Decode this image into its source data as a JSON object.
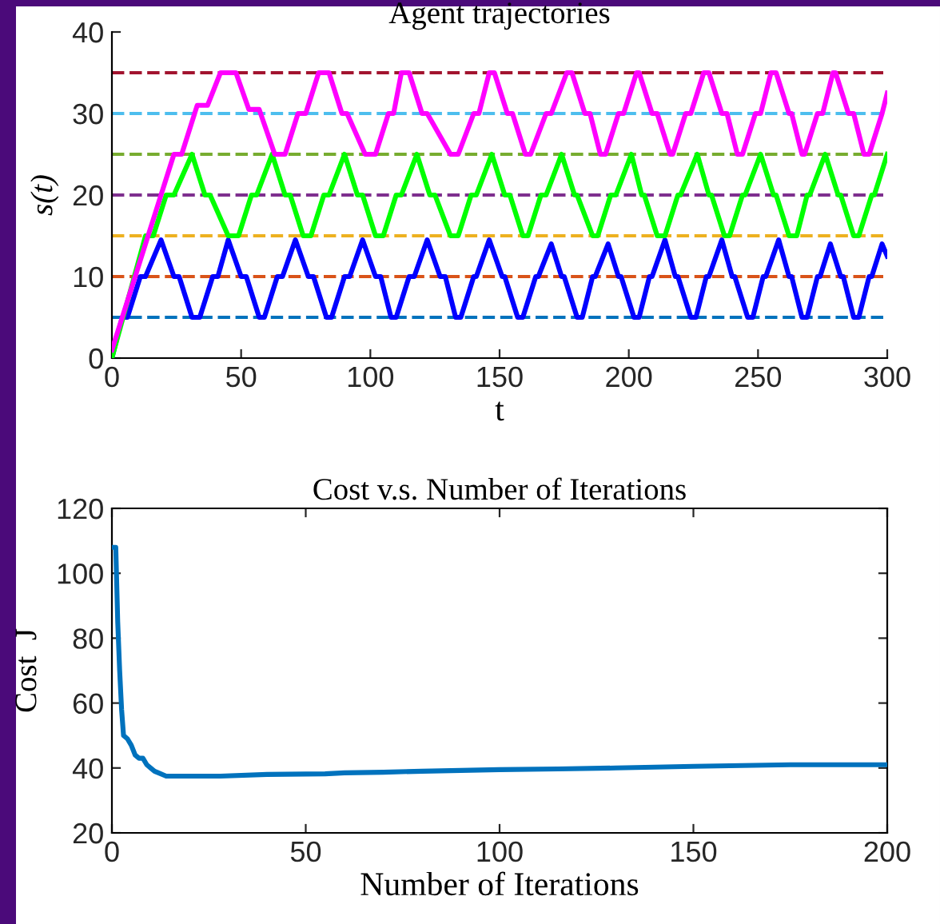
{
  "chart_data": [
    {
      "type": "line",
      "title": "Agent trajectories",
      "xlabel": "t",
      "ylabel": "s(t)",
      "xlim": [
        0,
        300
      ],
      "ylim": [
        0,
        40
      ],
      "xticks": [
        0,
        50,
        100,
        150,
        200,
        250,
        300
      ],
      "yticks": [
        0,
        10,
        20,
        30,
        40
      ],
      "grid": false,
      "line_style": "solid",
      "ref_lines": [
        {
          "axis": "y",
          "value": 5,
          "color": "#0072bd",
          "line_style": "dashed"
        },
        {
          "axis": "y",
          "value": 10,
          "color": "#d95319",
          "line_style": "dashed"
        },
        {
          "axis": "y",
          "value": 15,
          "color": "#edb120",
          "line_style": "dashed"
        },
        {
          "axis": "y",
          "value": 20,
          "color": "#7e2f8e",
          "line_style": "dashed"
        },
        {
          "axis": "y",
          "value": 25,
          "color": "#77ac30",
          "line_style": "dashed"
        },
        {
          "axis": "y",
          "value": 30,
          "color": "#4dbeee",
          "line_style": "dashed"
        },
        {
          "axis": "y",
          "value": 35,
          "color": "#a2142f",
          "line_style": "dashed"
        }
      ],
      "series": [
        {
          "color": "#0000ff",
          "x": [
            0,
            4,
            6,
            11,
            13,
            19,
            24,
            26,
            31,
            34,
            39,
            41,
            45,
            50,
            52,
            57,
            59,
            64,
            66,
            71,
            76,
            78,
            83,
            85,
            90,
            92,
            97,
            102,
            104,
            108,
            110,
            115,
            117,
            122,
            127,
            129,
            133,
            135,
            140,
            141,
            146,
            151,
            152,
            157,
            159,
            164,
            165,
            170,
            174,
            175,
            180,
            182,
            186,
            187,
            192,
            196,
            197,
            202,
            204,
            208,
            209,
            214,
            218,
            219,
            224,
            226,
            230,
            231,
            236,
            240,
            241,
            246,
            248,
            252,
            253,
            258,
            262,
            263,
            267,
            269,
            273,
            274,
            278,
            282,
            283,
            287,
            289,
            293,
            294,
            298,
            300
          ],
          "values": [
            0,
            5,
            5,
            10,
            10,
            14.5,
            10,
            10,
            5,
            5,
            10,
            10,
            14.5,
            10,
            10,
            5,
            5,
            10,
            10,
            14.5,
            10,
            10,
            5,
            5,
            10,
            10,
            14.5,
            10,
            10,
            5,
            5,
            10,
            10,
            14.5,
            10,
            10,
            5,
            5,
            10,
            10,
            14.5,
            10,
            10,
            5,
            5,
            10,
            10,
            14,
            10,
            10,
            5,
            5,
            10,
            10,
            14,
            10,
            10,
            5,
            5,
            10,
            10,
            14.5,
            10,
            10,
            5,
            5,
            10,
            10,
            14.5,
            10,
            10,
            5,
            5,
            10,
            10,
            14.5,
            10,
            10,
            5,
            5,
            10,
            10,
            14,
            10,
            10,
            5,
            5,
            10,
            10,
            14,
            12.5
          ]
        },
        {
          "color": "#00ff00",
          "x": [
            0,
            13,
            16,
            21,
            24,
            31,
            36,
            38,
            45,
            49,
            54,
            56,
            62,
            67,
            69,
            74,
            77,
            82,
            84,
            90,
            95,
            97,
            102,
            105,
            110,
            112,
            118,
            123,
            125,
            131,
            134,
            139,
            141,
            147,
            152,
            154,
            159,
            161,
            166,
            168,
            174,
            179,
            180,
            186,
            188,
            193,
            195,
            201,
            205,
            206,
            211,
            214,
            219,
            220,
            226.5,
            231,
            232,
            237,
            239,
            244,
            245,
            251,
            256,
            257,
            262,
            265,
            269,
            270,
            276,
            281,
            282,
            287,
            289,
            294,
            295,
            300
          ],
          "values": [
            0,
            15,
            15,
            20,
            20,
            25,
            20,
            20,
            15,
            15,
            20,
            20,
            25,
            20,
            20,
            15,
            15,
            20,
            20,
            25,
            20,
            20,
            15,
            15,
            20,
            20,
            25,
            20,
            20,
            15,
            15,
            20,
            20,
            25,
            20,
            20,
            15,
            15,
            20,
            20,
            25,
            20,
            20,
            15,
            15,
            20,
            20,
            25,
            20,
            20,
            15,
            15,
            20,
            20,
            25,
            20,
            20,
            15,
            15,
            20,
            20,
            25,
            20,
            20,
            15,
            15,
            20,
            20,
            25,
            20,
            20,
            15,
            15,
            20,
            20,
            25
          ]
        },
        {
          "color": "#ff00ff",
          "x": [
            0,
            24,
            27,
            33,
            37,
            42,
            48,
            53,
            57,
            63,
            67,
            72,
            75,
            80,
            84,
            89,
            91,
            98,
            102,
            107,
            109,
            112,
            115,
            120,
            122,
            131,
            134,
            140,
            142,
            146,
            148,
            153,
            155,
            160,
            162,
            168,
            170,
            176,
            178,
            183,
            185,
            189,
            191,
            196,
            198,
            203,
            204,
            209,
            211,
            216,
            217,
            222,
            224,
            229,
            231,
            236,
            238,
            242,
            244,
            249,
            251,
            255,
            257,
            262,
            263,
            267,
            268,
            273,
            275,
            279,
            280,
            285,
            287,
            291,
            293,
            298,
            300
          ],
          "values": [
            1,
            25,
            25,
            31,
            31,
            35,
            35,
            30.5,
            30.5,
            25,
            25,
            30,
            30,
            35,
            35,
            30,
            30,
            25,
            25,
            30,
            30,
            35,
            35,
            30,
            30,
            25,
            25,
            30,
            30,
            35,
            35,
            30,
            30,
            25,
            25,
            30,
            30,
            35,
            35,
            30,
            30,
            25,
            25,
            30,
            30,
            35,
            35,
            30,
            30,
            25,
            25,
            30,
            30,
            35,
            35,
            30,
            30,
            25,
            25,
            30,
            30,
            35,
            35,
            30,
            30,
            25,
            25,
            30,
            30,
            35,
            35,
            30,
            30,
            25,
            25,
            30,
            32.5
          ]
        }
      ]
    },
    {
      "type": "line",
      "title": "Cost v.s. Number of Iterations",
      "xlabel": "Number of Iterations",
      "ylabel": "Cost  J",
      "xlim": [
        0,
        200
      ],
      "ylim": [
        20,
        120
      ],
      "xticks": [
        0,
        50,
        100,
        150,
        200
      ],
      "yticks": [
        20,
        40,
        60,
        80,
        100,
        120
      ],
      "grid": false,
      "line_style": "solid",
      "series": [
        {
          "color": "#0072bd",
          "x": [
            0,
            1,
            1.5,
            2,
            2.5,
            3,
            4,
            5,
            6,
            7,
            8,
            9,
            10,
            11,
            12,
            14,
            20,
            28,
            40,
            55,
            60,
            70,
            80,
            100,
            115,
            130,
            150,
            175,
            200
          ],
          "values": [
            108,
            108,
            85,
            70,
            58,
            50,
            49,
            47,
            44,
            43,
            43,
            41,
            40,
            39,
            38.5,
            37.5,
            37.5,
            37.5,
            38,
            38.2,
            38.5,
            38.7,
            39,
            39.5,
            39.7,
            40,
            40.5,
            41,
            41
          ]
        }
      ]
    }
  ]
}
